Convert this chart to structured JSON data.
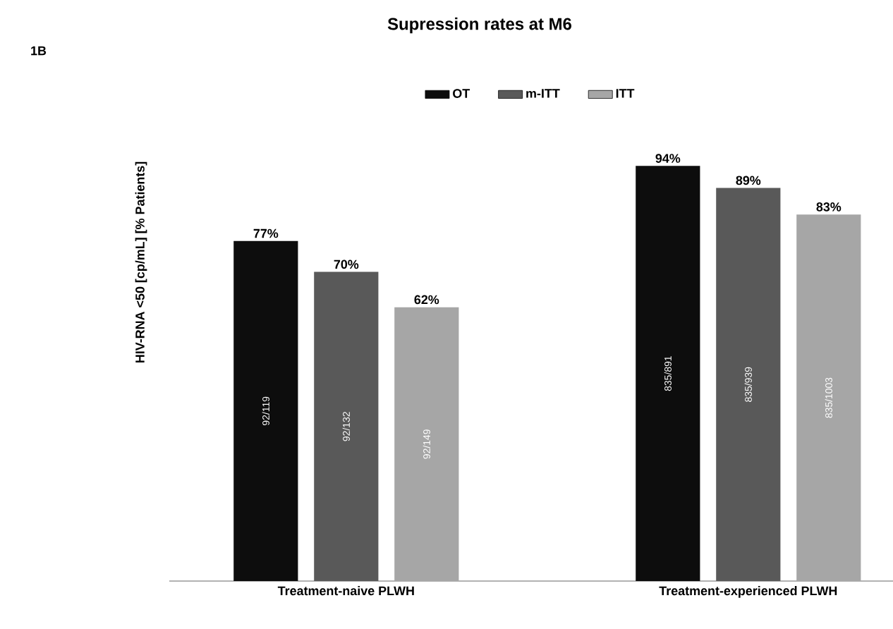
{
  "chart_data": {
    "type": "bar",
    "title": "Supression rates at M6",
    "ylabel": "HIV-RNA <50 [cp/mL] [% Patients]",
    "categories": [
      "Treatment-naive PLWH",
      "Treatment-experienced PLWH"
    ],
    "series": [
      {
        "name": "OT",
        "color": "#0d0d0d",
        "values": [
          77,
          94
        ],
        "value_labels": [
          "77%",
          "94%"
        ]
      },
      {
        "name": "m-ITT",
        "color": "#595959",
        "values": [
          70,
          89
        ],
        "value_labels": [
          "70%",
          "89%"
        ]
      },
      {
        "name": "ITT",
        "color": "#a6a6a6",
        "values": [
          62,
          83
        ],
        "value_labels": [
          "62%",
          "83%"
        ]
      }
    ],
    "legend": "top",
    "annotations": [
      "1B",
      "92/119",
      "835/891",
      "92/132",
      "835/939",
      "92/149",
      "835/1003"
    ]
  }
}
